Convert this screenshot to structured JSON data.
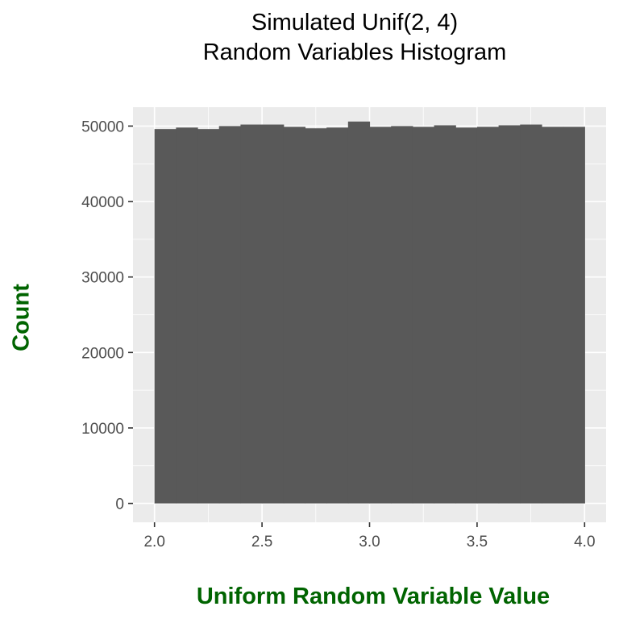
{
  "chart_data": {
    "type": "bar",
    "title": "Simulated Unif(2, 4)",
    "subtitle": "Random Variables Histogram",
    "xlabel": "Uniform Random Variable Value",
    "ylabel": "Count",
    "xlim": [
      1.9,
      4.1
    ],
    "ylim": [
      -2500,
      52500
    ],
    "x_ticks": [
      2.0,
      2.5,
      3.0,
      3.5,
      4.0
    ],
    "x_tick_labels": [
      "2.0",
      "2.5",
      "3.0",
      "3.5",
      "4.0"
    ],
    "y_ticks": [
      0,
      10000,
      20000,
      30000,
      40000,
      50000
    ],
    "y_tick_labels": [
      "0",
      "10000",
      "20000",
      "30000",
      "40000",
      "50000"
    ],
    "bin_edges": [
      2.0,
      2.1,
      2.2,
      2.3,
      2.4,
      2.5,
      2.6,
      2.7,
      2.8,
      2.9,
      3.0,
      3.1,
      3.2,
      3.3,
      3.4,
      3.5,
      3.6,
      3.7,
      3.8,
      3.9,
      4.0
    ],
    "values": [
      49600,
      49800,
      49600,
      50000,
      50200,
      50200,
      49900,
      49700,
      49800,
      50600,
      49900,
      50000,
      49900,
      50100,
      49800,
      49900,
      50100,
      50200,
      49900,
      49900
    ],
    "grid": true,
    "colors": {
      "bar": "#595959",
      "panel": "#ebebeb",
      "grid": "#ffffff",
      "label": "#006400"
    }
  }
}
